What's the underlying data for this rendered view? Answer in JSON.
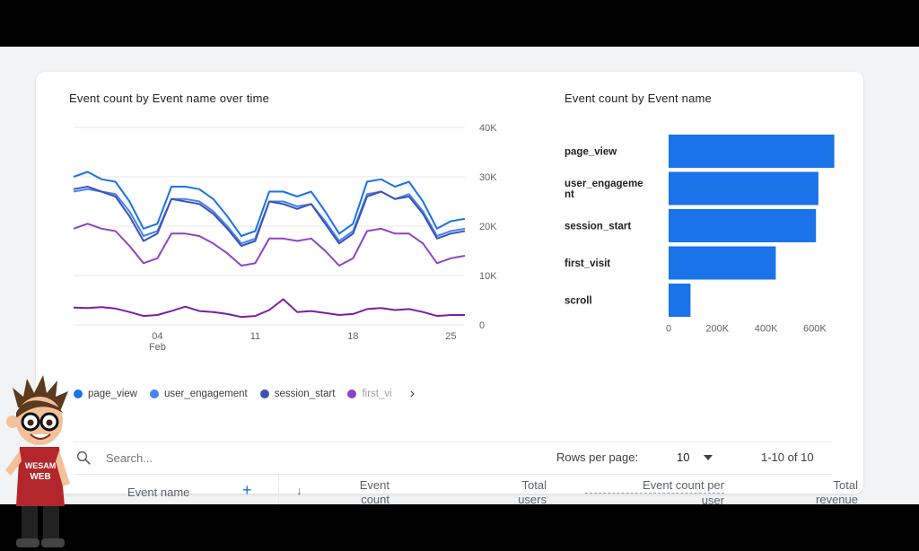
{
  "line_chart": {
    "title": "Event count by Event name over time",
    "chart_data": {
      "type": "line",
      "x": [
        "Jan 29",
        "Jan 30",
        "Jan 31",
        "Feb 1",
        "Feb 2",
        "Feb 3",
        "Feb 4",
        "Feb 5",
        "Feb 6",
        "Feb 7",
        "Feb 8",
        "Feb 9",
        "Feb 10",
        "Feb 11",
        "Feb 12",
        "Feb 13",
        "Feb 14",
        "Feb 15",
        "Feb 16",
        "Feb 17",
        "Feb 18",
        "Feb 19",
        "Feb 20",
        "Feb 21",
        "Feb 22",
        "Feb 23",
        "Feb 24",
        "Feb 25",
        "Feb 26"
      ],
      "xticks": [
        {
          "label": "04",
          "sub": "Feb",
          "index": 6
        },
        {
          "label": "11",
          "index": 13
        },
        {
          "label": "18",
          "index": 20
        },
        {
          "label": "25",
          "index": 27
        }
      ],
      "yticks": [
        "0",
        "10K",
        "20K",
        "30K",
        "40K"
      ],
      "ylim": [
        0,
        40000
      ],
      "series": [
        {
          "name": "page_view",
          "color": "#1a73e8",
          "values": [
            30000,
            31000,
            29500,
            29000,
            25000,
            19500,
            20500,
            28000,
            28000,
            27500,
            25500,
            22000,
            18000,
            19000,
            27000,
            27000,
            26000,
            27000,
            23000,
            18500,
            20500,
            29000,
            29500,
            28000,
            29000,
            25000,
            19500,
            21000,
            21500
          ]
        },
        {
          "name": "user_engagement",
          "color": "#4285f4",
          "values": [
            27000,
            27500,
            27000,
            26500,
            23000,
            18000,
            19000,
            25500,
            25500,
            25000,
            23000,
            20000,
            16500,
            17500,
            25000,
            25000,
            24000,
            24500,
            21000,
            17000,
            19000,
            26500,
            27000,
            25500,
            26500,
            23000,
            18000,
            19000,
            19500
          ]
        },
        {
          "name": "session_start",
          "color": "#3f51b5",
          "values": [
            27500,
            28000,
            27000,
            26000,
            22000,
            17000,
            18500,
            25500,
            25000,
            24500,
            22500,
            19500,
            16000,
            17000,
            25000,
            24500,
            23500,
            24500,
            20500,
            16500,
            18500,
            26000,
            27000,
            25500,
            26000,
            22500,
            17500,
            18500,
            19000
          ]
        },
        {
          "name": "first_visit",
          "color": "#8e44c4",
          "values": [
            19500,
            20500,
            19500,
            19000,
            16000,
            12500,
            13500,
            18500,
            18500,
            18000,
            16500,
            14500,
            12000,
            12500,
            17500,
            17500,
            17000,
            17500,
            15000,
            12000,
            13500,
            19000,
            19500,
            18500,
            18500,
            16500,
            12500,
            13500,
            14000
          ]
        },
        {
          "name": "scroll",
          "color": "#7b1fa2",
          "values": [
            3500,
            3400,
            3600,
            3300,
            2600,
            1800,
            2000,
            2800,
            3700,
            2800,
            2600,
            2200,
            1600,
            1800,
            3000,
            5200,
            2600,
            2800,
            2400,
            2000,
            2200,
            3200,
            3400,
            3000,
            3200,
            2600,
            1800,
            2000,
            2000
          ]
        }
      ]
    },
    "legend": [
      "page_view",
      "user_engagement",
      "session_start",
      "first_vi"
    ],
    "legend_next": "›"
  },
  "bar_chart": {
    "title": "Event count by Event name",
    "chart_data": {
      "type": "bar",
      "orientation": "horizontal",
      "categories": [
        "page_view",
        "user_engageme nt",
        "session_start",
        "first_visit",
        "scroll"
      ],
      "values": [
        680000,
        615000,
        605000,
        440000,
        90000
      ],
      "xticks": [
        "0",
        "200K",
        "400K",
        "600K"
      ],
      "xlim": [
        0,
        700000
      ],
      "color": "#1a73e8"
    }
  },
  "table": {
    "search_placeholder": "Search...",
    "rows_per_page_label": "Rows per page:",
    "rows_per_page_value": "10",
    "pagination": "1-10 of 10",
    "columns": {
      "event_name": "Event name",
      "add": "+",
      "sort": "↓",
      "event_count_1": "Event",
      "event_count_2": "count",
      "total_users_1": "Total",
      "total_users_2": "users",
      "per_user_1": "Event count per",
      "per_user_2": "user",
      "revenue_1": "Total",
      "revenue_2": "revenue"
    }
  },
  "overlay": {
    "shirt_text_1": "WESAM",
    "shirt_text_2": "WEB"
  },
  "colors": {
    "accent": "#1a73e8",
    "background": "#f1f3f4"
  }
}
